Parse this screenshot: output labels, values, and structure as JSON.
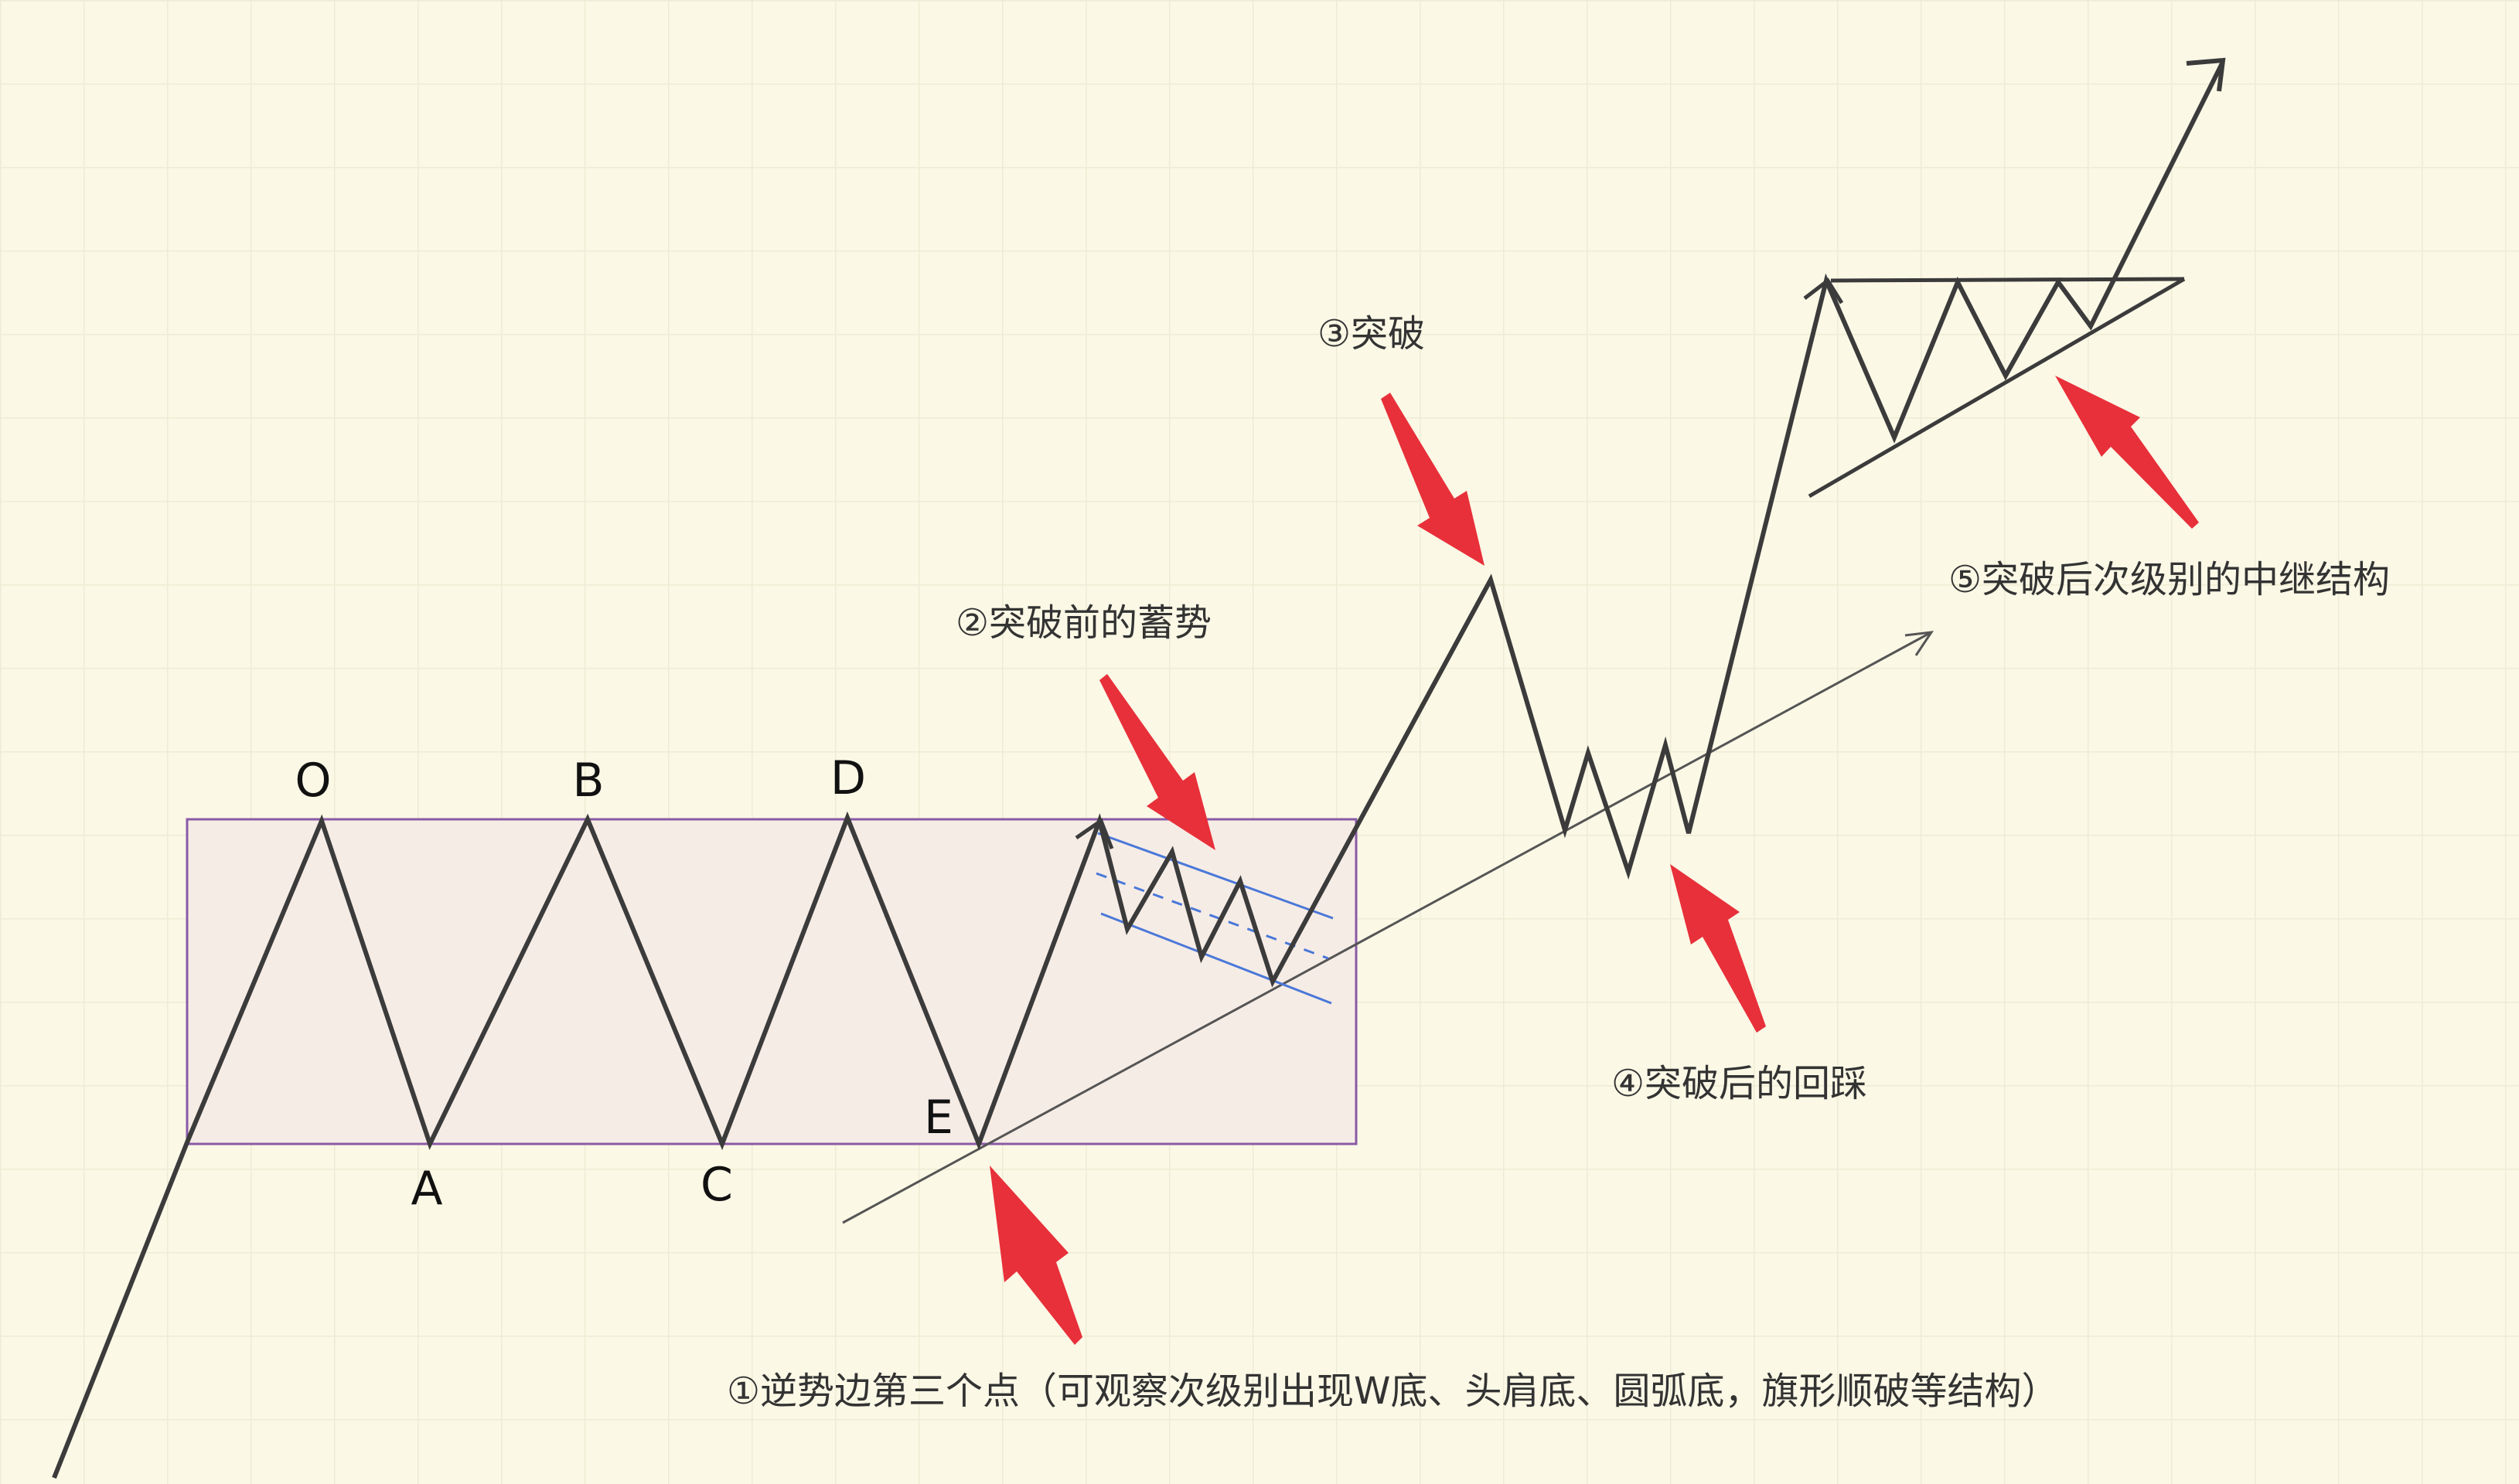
{
  "point_labels": {
    "O": "O",
    "A": "A",
    "B": "B",
    "C": "C",
    "D": "D",
    "E": "E"
  },
  "annotations": {
    "one": "①逆势边第三个点（可观察次级别出现W底、头肩底、圆弧底，旗形顺破等结构）",
    "two": "②突破前的蓄势",
    "three": "③突破",
    "four": "④突破后的回踩",
    "five": "⑤突破后次级别的中继结构"
  },
  "colors": {
    "background": "#fbf8e6",
    "grid": "#eeecd4",
    "price_line": "#3b3b3b",
    "range_fill": "#f6ece6",
    "range_border": "#8a5aa6",
    "flag_lines": "#4a78d8",
    "arrow_red": "#e8303a"
  }
}
